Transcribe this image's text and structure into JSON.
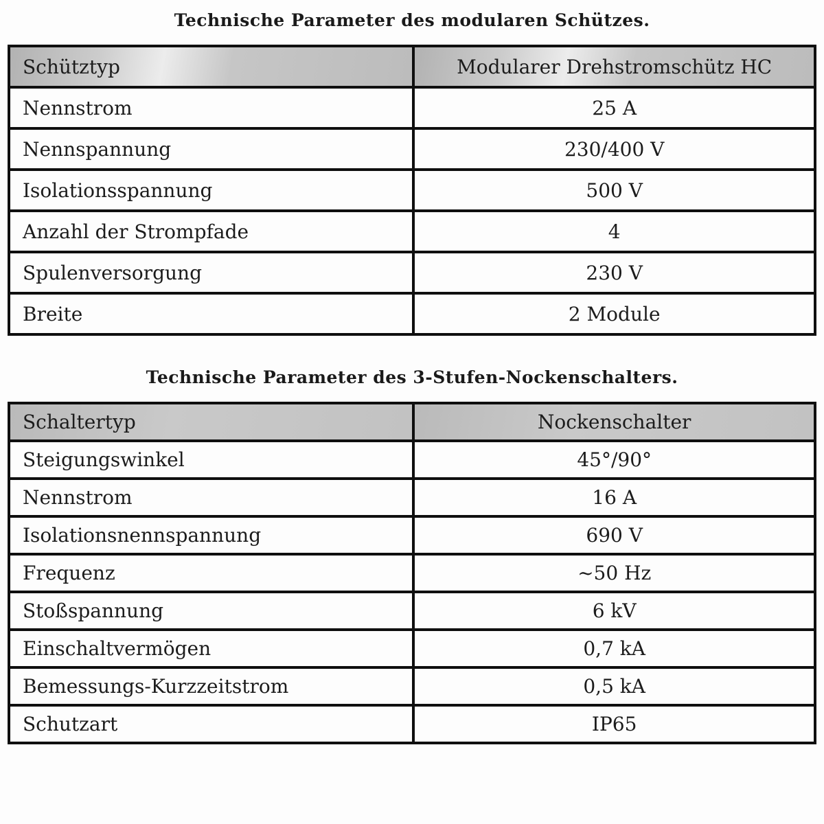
{
  "colors": {
    "header_bg": "#c3c3c3",
    "border": "#0f0f0f",
    "text": "#1c1c1c",
    "page_bg": "#fdfdfd"
  },
  "section1": {
    "title": "Technische Parameter des modularen Schützes.",
    "table": {
      "header": {
        "param": "Schütztyp",
        "value": "Modularer Drehstromschütz HC"
      },
      "rows": [
        {
          "param": "Nennstrom",
          "value": "25 A"
        },
        {
          "param": "Nennspannung",
          "value": "230/400 V"
        },
        {
          "param": "Isolationsspannung",
          "value": "500 V"
        },
        {
          "param": "Anzahl der Strompfade",
          "value": "4"
        },
        {
          "param": "Spulenversorgung",
          "value": "230 V"
        },
        {
          "param": "Breite",
          "value": "2 Module"
        }
      ]
    }
  },
  "section2": {
    "title": "Technische Parameter des 3-Stufen-Nockenschalters.",
    "table": {
      "header": {
        "param": "Schaltertyp",
        "value": "Nockenschalter"
      },
      "rows": [
        {
          "param": "Steigungswinkel",
          "value": "45°/90°"
        },
        {
          "param": "Nennstrom",
          "value": "16 A"
        },
        {
          "param": "Isolationsnennspannung",
          "value": "690 V"
        },
        {
          "param": "Frequenz",
          "value": "~50 Hz"
        },
        {
          "param": "Stoßspannung",
          "value": "6 kV"
        },
        {
          "param": "Einschaltvermögen",
          "value": "0,7 kA"
        },
        {
          "param": "Bemessungs-Kurzzeitstrom",
          "value": "0,5 kA"
        },
        {
          "param": "Schutzart",
          "value": "IP65"
        }
      ]
    }
  }
}
